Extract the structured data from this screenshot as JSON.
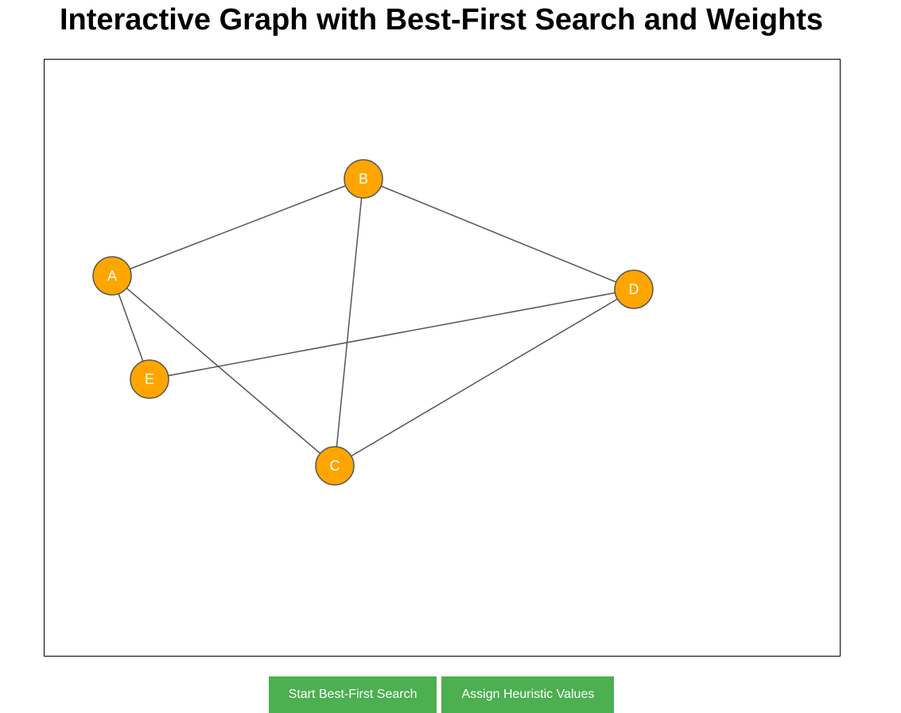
{
  "page": {
    "title": "Interactive Graph with Best-First Search and Weights"
  },
  "graph": {
    "nodes": [
      {
        "id": "A",
        "label": "A"
      },
      {
        "id": "B",
        "label": "B"
      },
      {
        "id": "C",
        "label": "C"
      },
      {
        "id": "D",
        "label": "D"
      },
      {
        "id": "E",
        "label": "E"
      }
    ],
    "edges": [
      {
        "source": "A",
        "target": "B"
      },
      {
        "source": "A",
        "target": "C"
      },
      {
        "source": "A",
        "target": "E"
      },
      {
        "source": "B",
        "target": "C"
      },
      {
        "source": "B",
        "target": "D"
      },
      {
        "source": "C",
        "target": "D"
      },
      {
        "source": "E",
        "target": "D"
      }
    ],
    "colors": {
      "node_fill": "#FFA500",
      "node_stroke": "#555555",
      "edge": "#555555",
      "label": "#ffffff"
    }
  },
  "controls": {
    "start_search_label": "Start Best-First Search",
    "assign_heuristics_label": "Assign Heuristic Values",
    "button_color": "#4CAF50"
  }
}
